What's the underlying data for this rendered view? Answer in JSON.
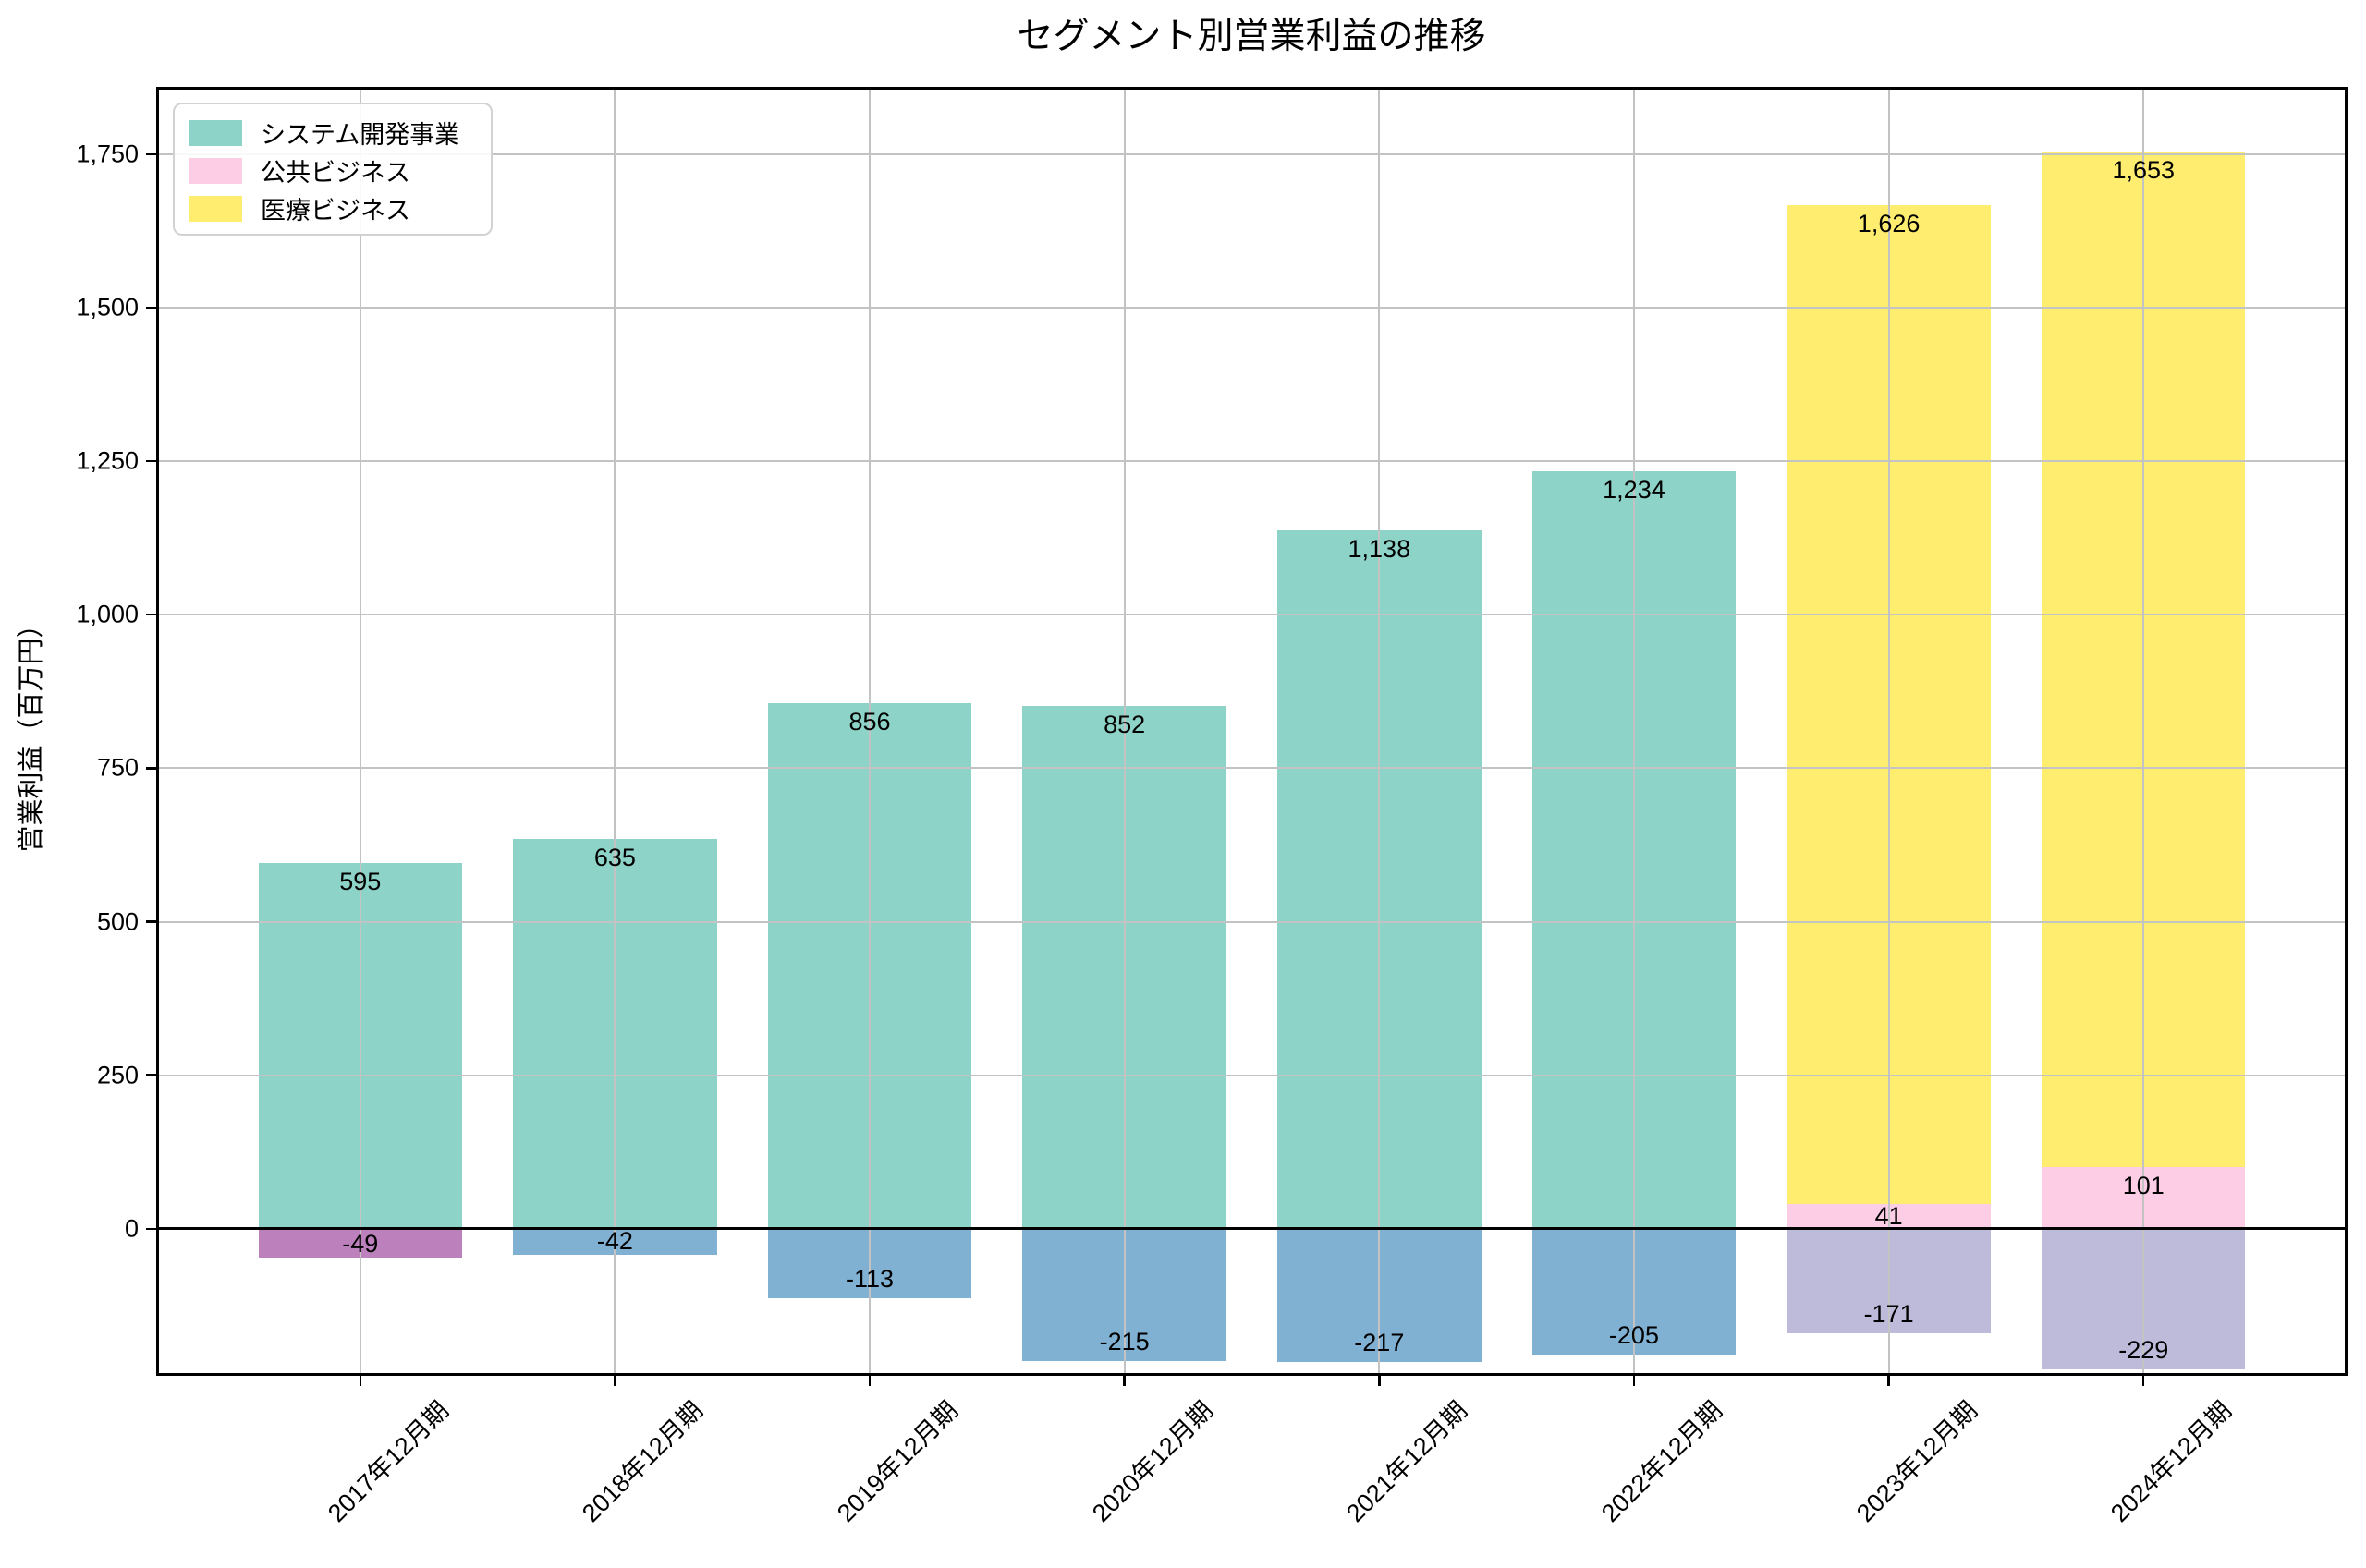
{
  "chart_data": {
    "type": "bar",
    "subtype": "stacked",
    "title": "セグメント別営業利益の推移",
    "xlabel": "",
    "ylabel": "営業利益（百万円）",
    "ylim": [
      -235,
      1855
    ],
    "yticks": [
      0,
      250,
      500,
      750,
      1000,
      1250,
      1500,
      1750
    ],
    "ytick_labels": [
      "0",
      "250",
      "500",
      "750",
      "1,000",
      "1,250",
      "1,500",
      "1,750"
    ],
    "grid": true,
    "grid_above_bars": true,
    "legend_position": "upper left",
    "legend": [
      {
        "label": "システム開発事業",
        "color": "#8dd3c7"
      },
      {
        "label": "公共ビジネス",
        "color": "#fccde5"
      },
      {
        "label": "医療ビジネス",
        "color": "#ffed6f"
      }
    ],
    "categories": [
      "2017年12月期",
      "2018年12月期",
      "2019年12月期",
      "2020年12月期",
      "2021年12月期",
      "2022年12月期",
      "2023年12月期",
      "2024年12月期"
    ],
    "bars": [
      {
        "category": "2017年12月期",
        "segments": [
          {
            "series": "システム開発事業",
            "value": 595,
            "label": "595",
            "color": "#8dd3c7"
          },
          {
            "series": null,
            "value": -49,
            "label": "-49",
            "color": "#bc80bd"
          }
        ]
      },
      {
        "category": "2018年12月期",
        "segments": [
          {
            "series": "システム開発事業",
            "value": 635,
            "label": "635",
            "color": "#8dd3c7"
          },
          {
            "series": null,
            "value": -42,
            "label": "-42",
            "color": "#80b1d3"
          }
        ]
      },
      {
        "category": "2019年12月期",
        "segments": [
          {
            "series": "システム開発事業",
            "value": 856,
            "label": "856",
            "color": "#8dd3c7"
          },
          {
            "series": null,
            "value": -113,
            "label": "-113",
            "color": "#80b1d3"
          }
        ]
      },
      {
        "category": "2020年12月期",
        "segments": [
          {
            "series": "システム開発事業",
            "value": 852,
            "label": "852",
            "color": "#8dd3c7"
          },
          {
            "series": null,
            "value": -215,
            "label": "-215",
            "color": "#80b1d3"
          }
        ]
      },
      {
        "category": "2021年12月期",
        "segments": [
          {
            "series": "システム開発事業",
            "value": 1138,
            "label": "1,138",
            "color": "#8dd3c7"
          },
          {
            "series": null,
            "value": -217,
            "label": "-217",
            "color": "#80b1d3"
          }
        ]
      },
      {
        "category": "2022年12月期",
        "segments": [
          {
            "series": "システム開発事業",
            "value": 1234,
            "label": "1,234",
            "color": "#8dd3c7"
          },
          {
            "series": null,
            "value": -205,
            "label": "-205",
            "color": "#80b1d3"
          }
        ]
      },
      {
        "category": "2023年12月期",
        "segments": [
          {
            "series": "公共ビジネス",
            "value": 41,
            "label": "41",
            "color": "#fccde5"
          },
          {
            "series": "医療ビジネス",
            "value": 1626,
            "label": "1,626",
            "color": "#ffed6f"
          },
          {
            "series": null,
            "value": -171,
            "label": "-171",
            "color": "#bebada"
          }
        ]
      },
      {
        "category": "2024年12月期",
        "segments": [
          {
            "series": "公共ビジネス",
            "value": 101,
            "label": "101",
            "color": "#fccde5"
          },
          {
            "series": "医療ビジネス",
            "value": 1653,
            "label": "1,653",
            "color": "#ffed6f"
          },
          {
            "series": null,
            "value": -229,
            "label": "-229",
            "color": "#bebada"
          }
        ]
      }
    ],
    "colors": {
      "system_dev": "#8dd3c7",
      "public_biz": "#fccde5",
      "medical_biz": "#ffed6f",
      "negative_blue": "#80b1d3",
      "negative_purple": "#bc80bd",
      "negative_lavender": "#bebada",
      "grid": "#c3c3c3",
      "axis": "#000000"
    }
  }
}
